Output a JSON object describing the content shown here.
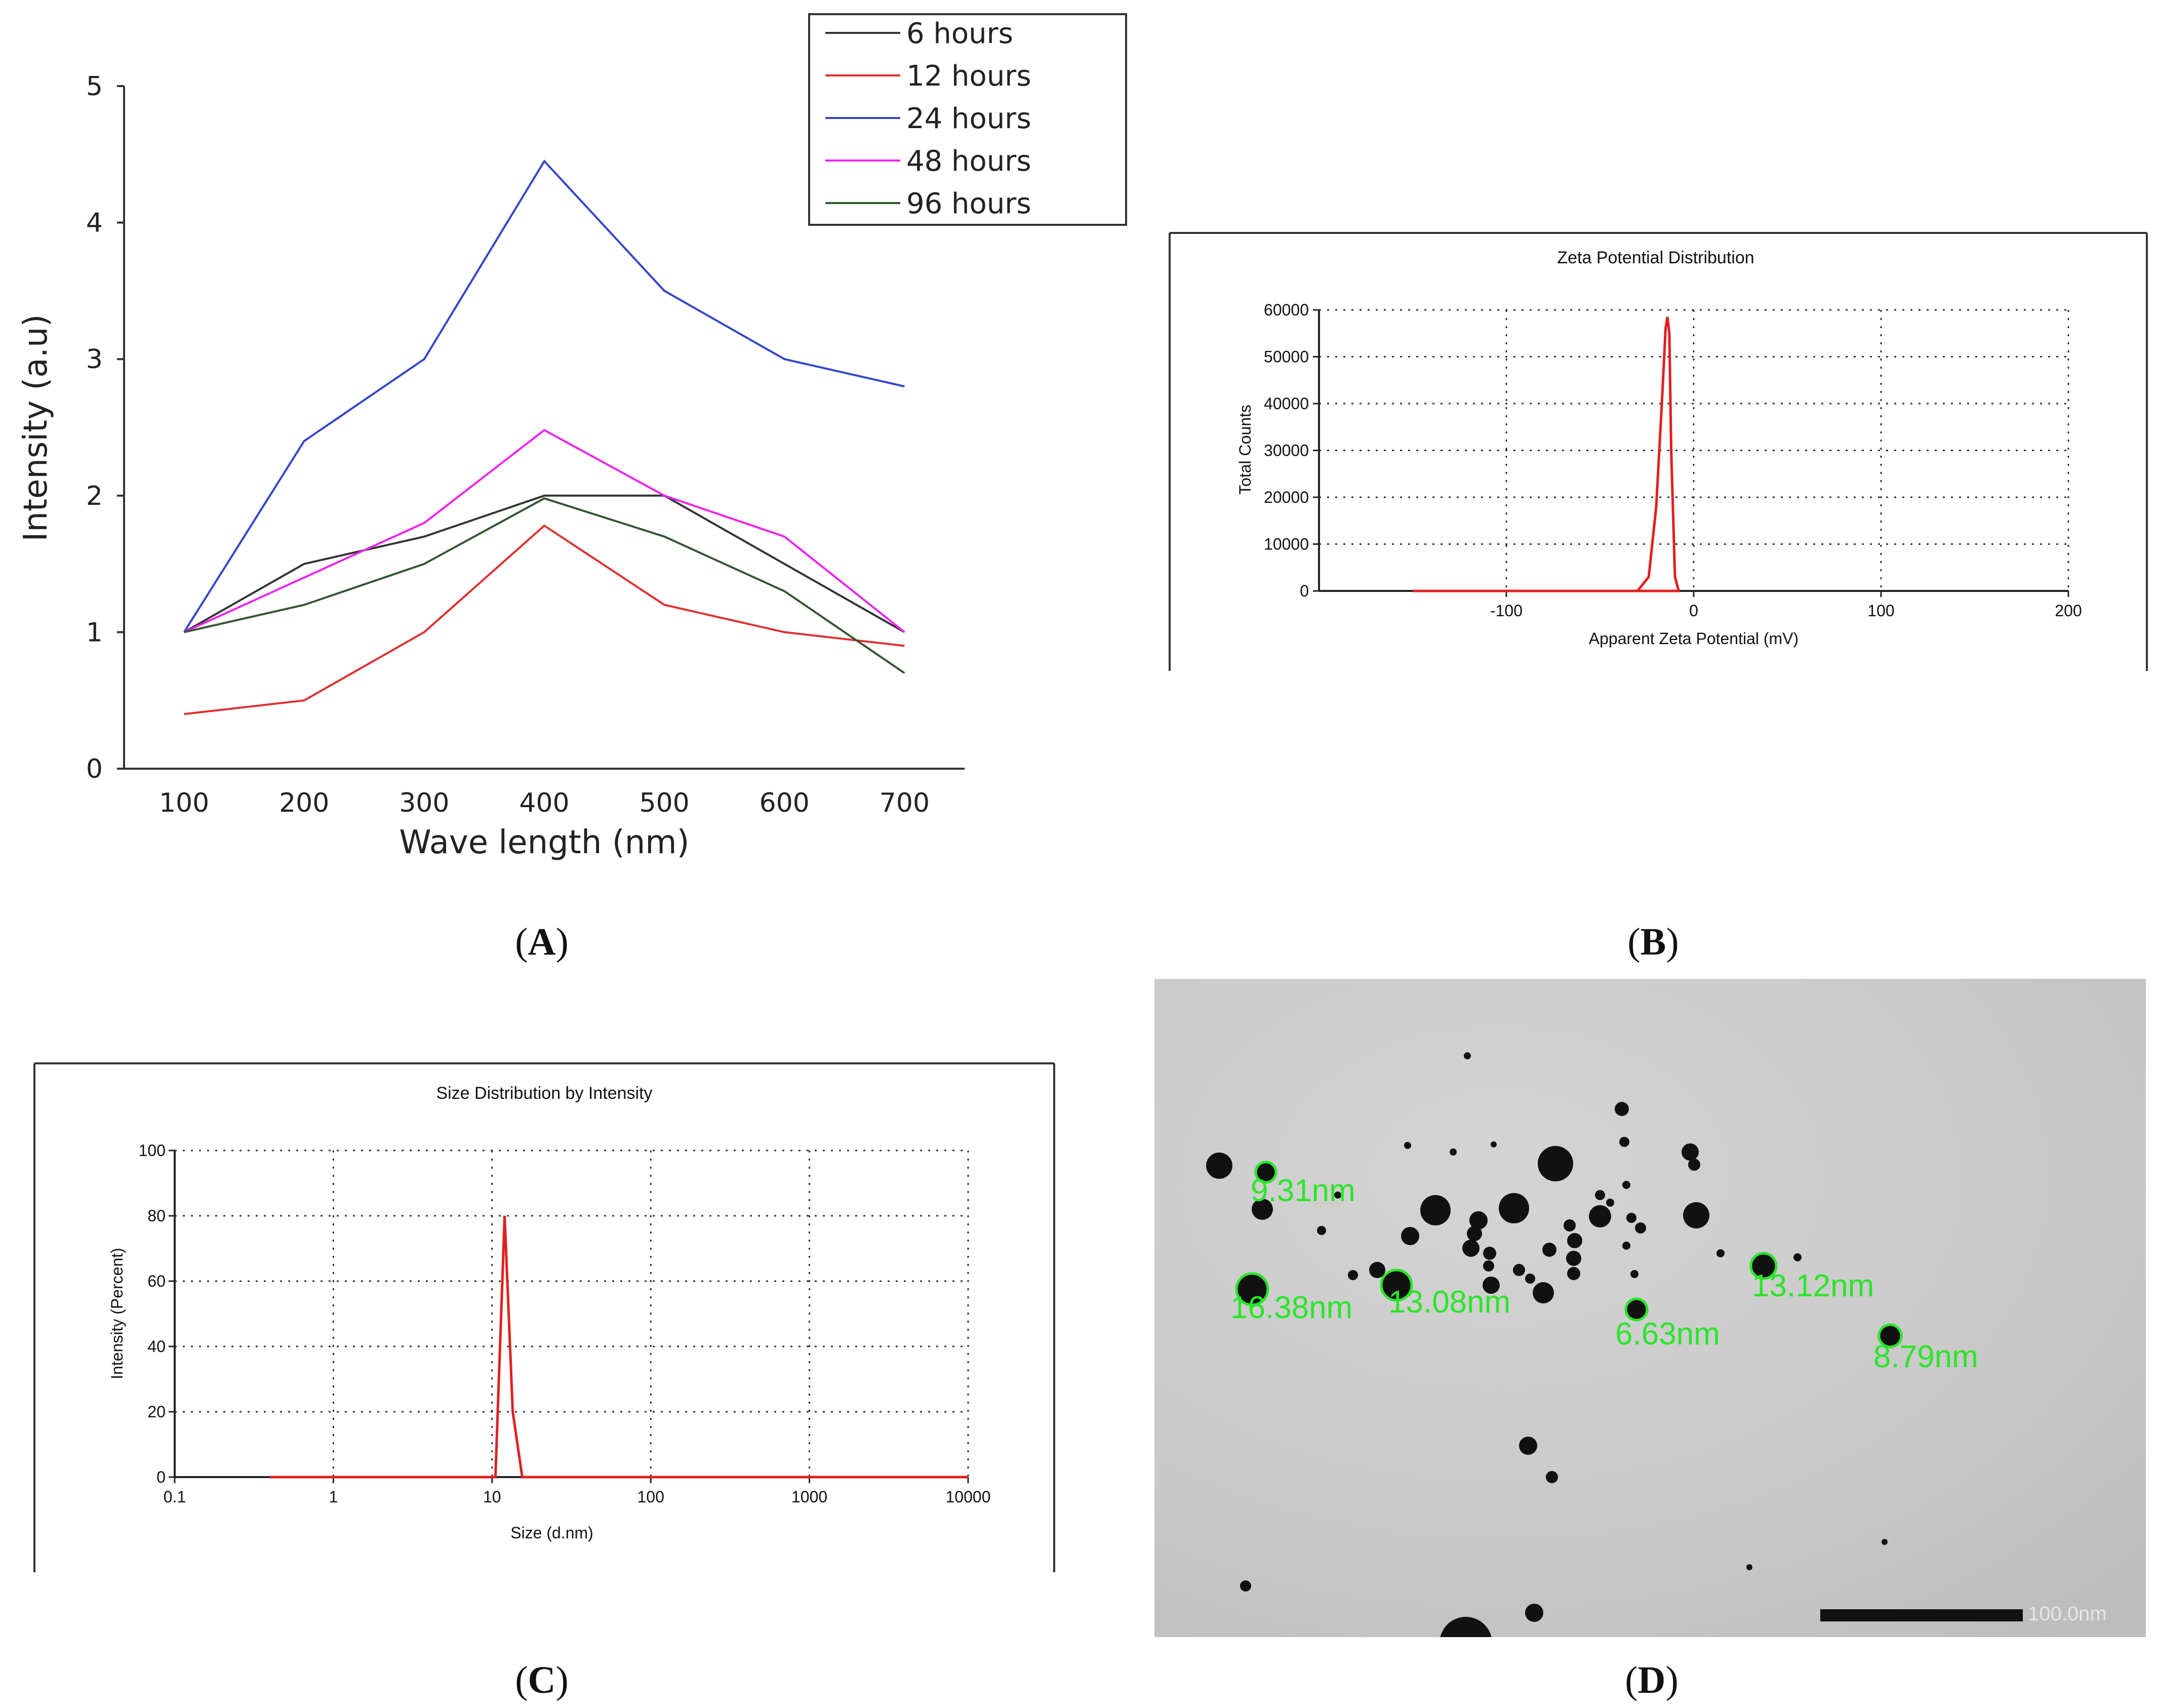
{
  "chart_data": [
    {
      "panel": "A",
      "type": "line",
      "title": "",
      "xlabel": "Wave length (nm)",
      "ylabel": "Intensity (a.u)",
      "x": [
        100,
        200,
        300,
        400,
        500,
        600,
        700
      ],
      "xticks": [
        "100",
        "200",
        "300",
        "400",
        "500",
        "600",
        "700"
      ],
      "yticks": [
        "0",
        "1",
        "2",
        "3",
        "4",
        "5"
      ],
      "xlim": [
        50,
        750
      ],
      "ylim": [
        0,
        5
      ],
      "series": [
        {
          "name": "6 hours",
          "color": "#333333",
          "values": [
            1.0,
            1.5,
            1.7,
            2.0,
            2.0,
            1.5,
            1.0
          ]
        },
        {
          "name": "12 hours",
          "color": "#e03030",
          "values": [
            0.4,
            0.5,
            1.0,
            1.78,
            1.2,
            1.0,
            0.9
          ]
        },
        {
          "name": "24 hours",
          "color": "#3344cc",
          "values": [
            1.0,
            2.4,
            3.0,
            4.45,
            3.5,
            3.0,
            2.8
          ]
        },
        {
          "name": "48 hours",
          "color": "#ee22ee",
          "values": [
            1.0,
            1.4,
            1.8,
            2.48,
            2.0,
            1.7,
            1.0
          ]
        },
        {
          "name": "96 hours",
          "color": "#335533",
          "values": [
            1.0,
            1.2,
            1.5,
            1.98,
            1.7,
            1.3,
            0.7
          ]
        }
      ]
    },
    {
      "panel": "B",
      "type": "line",
      "title": "Zeta Potential Distribution",
      "xlabel": "Apparent Zeta Potential (mV)",
      "ylabel": "Total Counts",
      "xlim": [
        -200,
        200
      ],
      "ylim": [
        0,
        60000
      ],
      "xticks": [
        "-100",
        "0",
        "100",
        "200"
      ],
      "yticks": [
        "0",
        "10000",
        "20000",
        "30000",
        "40000",
        "50000",
        "60000"
      ],
      "grid": true,
      "series": [
        {
          "name": "zeta",
          "color": "#e02020",
          "x": [
            -150,
            -30,
            -24,
            -20,
            -17,
            -15,
            -14,
            -13,
            -12,
            -10,
            -8,
            -150
          ],
          "y": [
            0,
            0,
            3000,
            18000,
            40000,
            56000,
            58500,
            55000,
            30000,
            3000,
            0,
            0
          ]
        }
      ]
    },
    {
      "panel": "C",
      "type": "line",
      "title": "Size Distribution by Intensity",
      "xlabel": "Size (d.nm)",
      "ylabel": "Intensity (Percent)",
      "xscale": "log",
      "xlim": [
        0.1,
        10000
      ],
      "ylim": [
        0,
        100
      ],
      "xticks": [
        "0.1",
        "1",
        "10",
        "100",
        "1000",
        "10000"
      ],
      "yticks": [
        "0",
        "20",
        "40",
        "60",
        "80",
        "100"
      ],
      "grid": true,
      "series": [
        {
          "name": "size",
          "color": "#e02020",
          "x": [
            0.4,
            10.5,
            12.0,
            13.5,
            15.5,
            10000
          ],
          "y": [
            0,
            0,
            80,
            20,
            0,
            0
          ]
        }
      ]
    }
  ],
  "captions": [
    "A",
    "B",
    "C",
    "D"
  ],
  "tem_image": {
    "labels": [
      "9.31nm",
      "16.38nm",
      "13.08nm",
      "6.63nm",
      "13.12nm",
      "8.79nm"
    ],
    "scale_bar": "100.0nm"
  }
}
